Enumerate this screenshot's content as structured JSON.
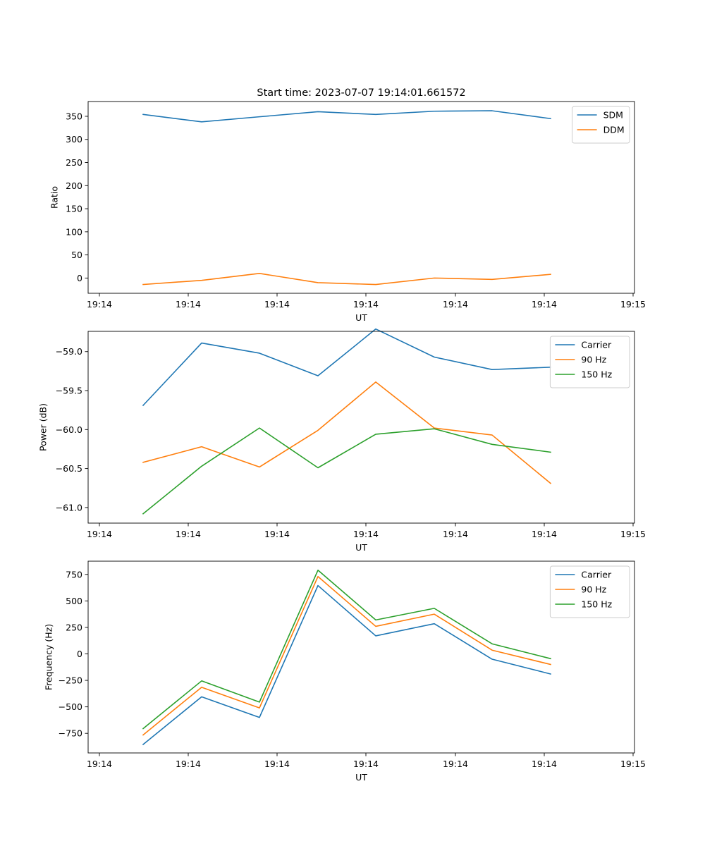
{
  "colors": {
    "blue": "#1f77b4",
    "orange": "#ff7f0e",
    "green": "#2ca02c"
  },
  "chart_data": [
    {
      "type": "line",
      "title": "Start time: 2023-07-07 19:14:01.661572",
      "xlabel": "UT",
      "ylabel": "Ratio",
      "x_tick_labels": [
        "19:14",
        "19:14",
        "19:14",
        "19:14",
        "19:14",
        "19:14",
        "19:15"
      ],
      "yticks": [
        0,
        50,
        100,
        150,
        200,
        250,
        300,
        350
      ],
      "ylim": [
        -33,
        382
      ],
      "legend_position": "top-right",
      "series": [
        {
          "name": "SDM",
          "color": "#1f77b4",
          "values": [
            354,
            338,
            349,
            360,
            354,
            361,
            362,
            345
          ]
        },
        {
          "name": "DDM",
          "color": "#ff7f0e",
          "values": [
            -14,
            -5,
            10,
            -10,
            -14,
            0,
            -3,
            8
          ]
        }
      ]
    },
    {
      "type": "line",
      "title": "",
      "xlabel": "UT",
      "ylabel": "Power (dB)",
      "x_tick_labels": [
        "19:14",
        "19:14",
        "19:14",
        "19:14",
        "19:14",
        "19:14",
        "19:15"
      ],
      "yticks": [
        -61.0,
        -60.5,
        -60.0,
        -59.5,
        -59.0
      ],
      "ytick_labels": [
        "−61.0",
        "−60.5",
        "−60.0",
        "−59.5",
        "−59.0"
      ],
      "ylim": [
        -61.2,
        -58.74
      ],
      "legend_position": "top-right",
      "series": [
        {
          "name": "Carrier",
          "color": "#1f77b4",
          "values": [
            -59.69,
            -58.89,
            -59.02,
            -59.31,
            -58.71,
            -59.07,
            -59.23,
            -59.2
          ]
        },
        {
          "name": "90 Hz",
          "color": "#ff7f0e",
          "values": [
            -60.42,
            -60.22,
            -60.48,
            -60.01,
            -59.39,
            -59.98,
            -60.07,
            -60.69
          ]
        },
        {
          "name": "150 Hz",
          "color": "#2ca02c",
          "values": [
            -61.08,
            -60.47,
            -59.98,
            -60.49,
            -60.06,
            -59.99,
            -60.19,
            -60.29
          ]
        }
      ]
    },
    {
      "type": "line",
      "title": "",
      "xlabel": "UT",
      "ylabel": "Frequency (Hz)",
      "x_tick_labels": [
        "19:14",
        "19:14",
        "19:14",
        "19:14",
        "19:14",
        "19:14",
        "19:15"
      ],
      "yticks": [
        -750,
        -500,
        -250,
        0,
        250,
        500,
        750
      ],
      "ytick_labels": [
        "−750",
        "−500",
        "−250",
        "0",
        "250",
        "500",
        "750"
      ],
      "ylim": [
        -935,
        875
      ],
      "legend_position": "top-right",
      "series": [
        {
          "name": "Carrier",
          "color": "#1f77b4",
          "values": [
            -855,
            -405,
            -600,
            645,
            170,
            285,
            -50,
            -190
          ]
        },
        {
          "name": "90 Hz",
          "color": "#ff7f0e",
          "values": [
            -765,
            -315,
            -510,
            730,
            260,
            375,
            35,
            -100
          ]
        },
        {
          "name": "150 Hz",
          "color": "#2ca02c",
          "values": [
            -705,
            -255,
            -455,
            790,
            320,
            430,
            95,
            -45
          ]
        }
      ]
    }
  ]
}
